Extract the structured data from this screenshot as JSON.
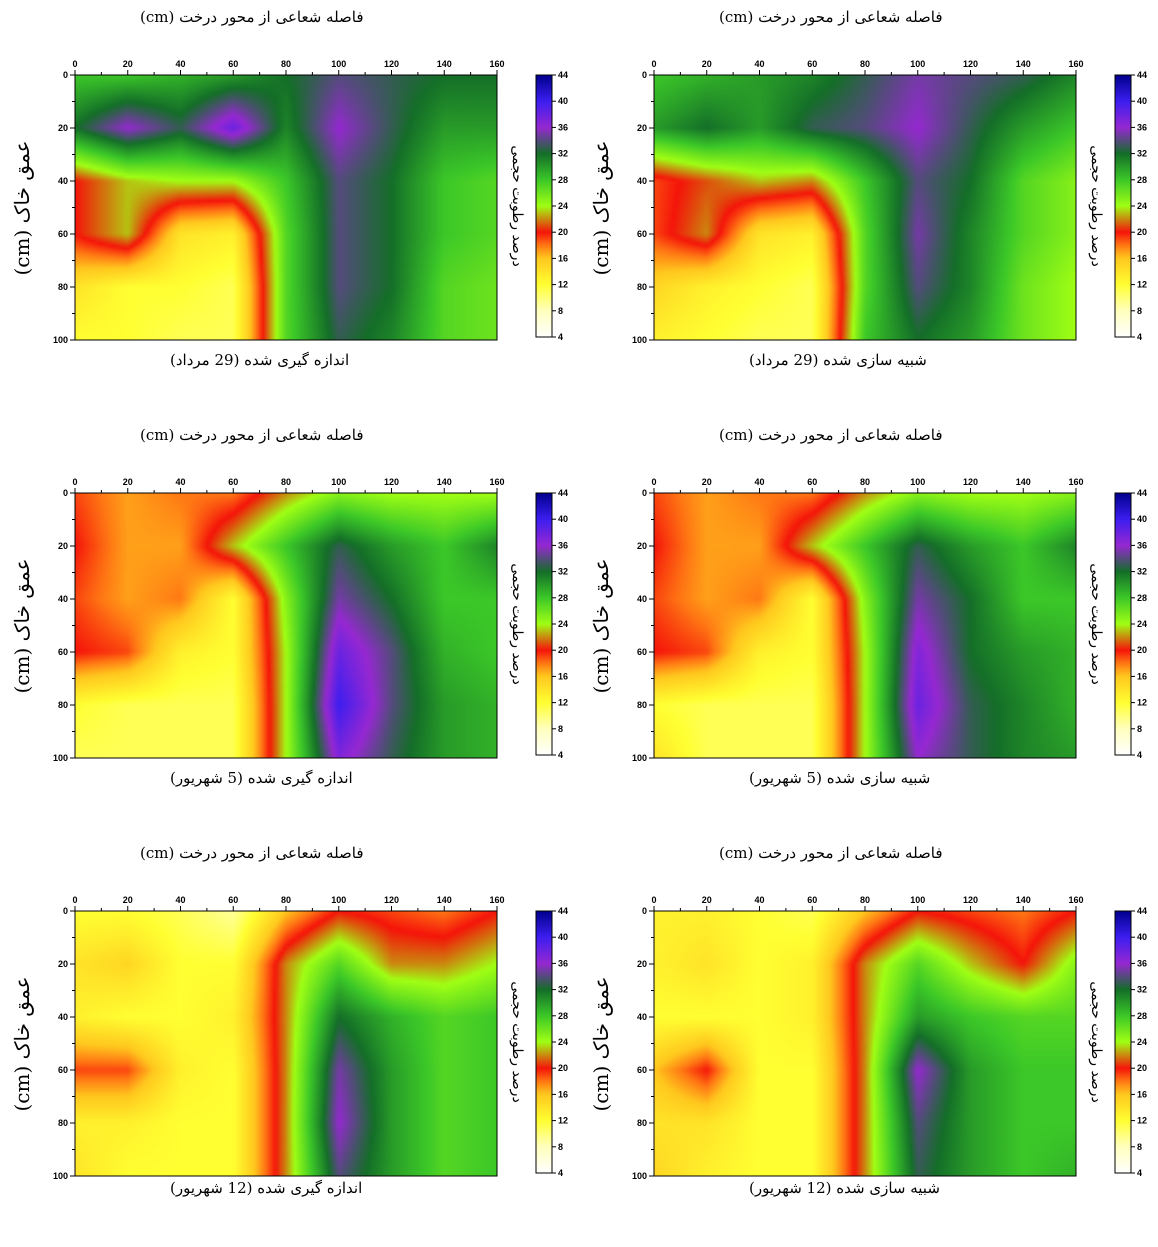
{
  "common": {
    "x_title": "فاصله شعاعی از محور درخت (cm)",
    "y_title": "عمق خاک (cm)",
    "colorbar_title": "درصد رطوبت حجمی",
    "x_ticks": [
      0,
      20,
      40,
      60,
      80,
      100,
      120,
      140,
      160
    ],
    "y_ticks": [
      0,
      20,
      40,
      60,
      80,
      100
    ],
    "colorbar_ticks": [
      4,
      8,
      12,
      16,
      20,
      24,
      28,
      32,
      36,
      40,
      44
    ]
  },
  "panels": [
    {
      "caption": "اندازه گیری شده (29 مرداد)"
    },
    {
      "caption": "شبیه سازی شده (29 مرداد)"
    },
    {
      "caption": "اندازه گیری شده (5 شهریور)"
    },
    {
      "caption": "شبیه سازی شده (5 شهریور)"
    },
    {
      "caption": "اندازه گیری شده (12 شهریور)"
    },
    {
      "caption": "شبیه سازی شده (12 شهریور)"
    }
  ],
  "chart_data": [
    {
      "type": "heatmap",
      "title": "اندازه گیری شده (29 مرداد)",
      "xlabel": "فاصله شعاعی از محور درخت (cm)",
      "ylabel": "عمق خاک (cm)",
      "colorbar_label": "درصد رطوبت حجمی",
      "xlim": [
        0,
        160
      ],
      "ylim": [
        0,
        100
      ],
      "clim": [
        4,
        44
      ],
      "x": [
        0,
        20,
        40,
        60,
        80,
        100,
        120,
        140,
        160
      ],
      "y": [
        0,
        20,
        40,
        60,
        80,
        100
      ],
      "z": [
        [
          28,
          28,
          29,
          30,
          32,
          34,
          33,
          32,
          32
        ],
        [
          32,
          36,
          33,
          38,
          31,
          36,
          33,
          30,
          30
        ],
        [
          20,
          23,
          24,
          24,
          28,
          34,
          32,
          28,
          27
        ],
        [
          20,
          23,
          14,
          13,
          27,
          34,
          32,
          28,
          27
        ],
        [
          14,
          12,
          12,
          11,
          27,
          34,
          32,
          27,
          26
        ],
        [
          12,
          12,
          11,
          11,
          27,
          33,
          31,
          27,
          26
        ]
      ]
    },
    {
      "type": "heatmap",
      "title": "شبیه سازی شده (29 مرداد)",
      "xlabel": "فاصله شعاعی از محور درخت (cm)",
      "ylabel": "عمق خاک (cm)",
      "colorbar_label": "درصد رطوبت حجمی",
      "xlim": [
        0,
        160
      ],
      "ylim": [
        0,
        100
      ],
      "clim": [
        4,
        44
      ],
      "x": [
        0,
        20,
        40,
        60,
        80,
        100,
        120,
        140,
        160
      ],
      "y": [
        0,
        20,
        40,
        60,
        80,
        100
      ],
      "z": [
        [
          28,
          29,
          30,
          31,
          33,
          35,
          34,
          33,
          31
        ],
        [
          30,
          32,
          30,
          33,
          34,
          36,
          33,
          30,
          28
        ],
        [
          19,
          21,
          23,
          22,
          28,
          34,
          32,
          27,
          25
        ],
        [
          19,
          22,
          14,
          13,
          27,
          35,
          31,
          27,
          25
        ],
        [
          15,
          13,
          12,
          11,
          27,
          34,
          31,
          26,
          24
        ],
        [
          13,
          12,
          11,
          11,
          28,
          32,
          30,
          26,
          24
        ]
      ]
    },
    {
      "type": "heatmap",
      "title": "اندازه گیری شده (5 شهریور)",
      "xlabel": "فاصله شعاعی از محور درخت (cm)",
      "ylabel": "عمق خاک (cm)",
      "colorbar_label": "درصد رطوبت حجمی",
      "xlim": [
        0,
        160
      ],
      "ylim": [
        0,
        100
      ],
      "clim": [
        4,
        44
      ],
      "x": [
        0,
        20,
        40,
        60,
        80,
        100,
        120,
        140,
        160
      ],
      "y": [
        0,
        20,
        40,
        60,
        80,
        100
      ],
      "z": [
        [
          19,
          17,
          18,
          18,
          22,
          25,
          24,
          24,
          24
        ],
        [
          20,
          17,
          17,
          23,
          28,
          33,
          30,
          28,
          31
        ],
        [
          19,
          17,
          18,
          12,
          25,
          35,
          32,
          28,
          28
        ],
        [
          20,
          19,
          13,
          12,
          24,
          38,
          34,
          29,
          28
        ],
        [
          12,
          11,
          11,
          11,
          24,
          40,
          34,
          30,
          29
        ],
        [
          11,
          11,
          11,
          11,
          24,
          37,
          33,
          30,
          29
        ]
      ]
    },
    {
      "type": "heatmap",
      "title": "شبیه سازی شده (5 شهریور)",
      "xlabel": "فاصله شعاعی از محور درخت (cm)",
      "ylabel": "عمق خاک (cm)",
      "colorbar_label": "درصد رطوبت حجمی",
      "xlim": [
        0,
        160
      ],
      "ylim": [
        0,
        100
      ],
      "clim": [
        4,
        44
      ],
      "x": [
        0,
        20,
        40,
        60,
        80,
        100,
        120,
        140,
        160
      ],
      "y": [
        0,
        20,
        40,
        60,
        80,
        100
      ],
      "z": [
        [
          19,
          17,
          18,
          18,
          22,
          25,
          24,
          24,
          25
        ],
        [
          20,
          17,
          17,
          23,
          28,
          33,
          30,
          28,
          31
        ],
        [
          19,
          17,
          18,
          12,
          25,
          35,
          32,
          28,
          28
        ],
        [
          20,
          19,
          13,
          12,
          24,
          37,
          32,
          30,
          29
        ],
        [
          12,
          11,
          11,
          11,
          24,
          38,
          33,
          31,
          29
        ],
        [
          14,
          11,
          11,
          11,
          24,
          36,
          33,
          31,
          30
        ]
      ]
    },
    {
      "type": "heatmap",
      "title": "اندازه گیری شده (12 شهریور)",
      "xlabel": "فاصله شعاعی از محور درخت (cm)",
      "ylabel": "عمق خاک (cm)",
      "colorbar_label": "درصد رطوبت حجمی",
      "xlim": [
        0,
        160
      ],
      "ylim": [
        0,
        100
      ],
      "clim": [
        4,
        44
      ],
      "x": [
        0,
        20,
        40,
        60,
        80,
        100,
        120,
        140,
        160
      ],
      "y": [
        0,
        20,
        40,
        60,
        80,
        100
      ],
      "z": [
        [
          12,
          12,
          11,
          9,
          16,
          20,
          19,
          18,
          20
        ],
        [
          14,
          15,
          12,
          12,
          22,
          27,
          22,
          22,
          24
        ],
        [
          13,
          12,
          12,
          13,
          22,
          32,
          29,
          27,
          28
        ],
        [
          19,
          19,
          13,
          12,
          22,
          35,
          30,
          27,
          28
        ],
        [
          13,
          13,
          12,
          12,
          22,
          36,
          30,
          27,
          28
        ],
        [
          14,
          12,
          12,
          12,
          22,
          34,
          30,
          27,
          28
        ]
      ]
    },
    {
      "type": "heatmap",
      "title": "شبیه سازی شده (12 شهریور)",
      "xlabel": "فاصله شعاعی از محور درخت (cm)",
      "ylabel": "عمق خاک (cm)",
      "colorbar_label": "درصد رطوبت حجمی",
      "xlim": [
        0,
        160
      ],
      "ylim": [
        0,
        100
      ],
      "clim": [
        4,
        44
      ],
      "x": [
        0,
        20,
        40,
        60,
        80,
        100,
        120,
        140,
        160
      ],
      "y": [
        0,
        20,
        40,
        60,
        80,
        100
      ],
      "z": [
        [
          13,
          13,
          12,
          11,
          16,
          20,
          19,
          18,
          20
        ],
        [
          13,
          14,
          12,
          13,
          22,
          27,
          23,
          20,
          25
        ],
        [
          12,
          12,
          12,
          13,
          22,
          30,
          28,
          27,
          27
        ],
        [
          16,
          20,
          12,
          12,
          22,
          36,
          30,
          28,
          28
        ],
        [
          14,
          14,
          12,
          12,
          22,
          34,
          30,
          28,
          28
        ],
        [
          15,
          13,
          12,
          12,
          22,
          33,
          30,
          28,
          29
        ]
      ]
    }
  ]
}
